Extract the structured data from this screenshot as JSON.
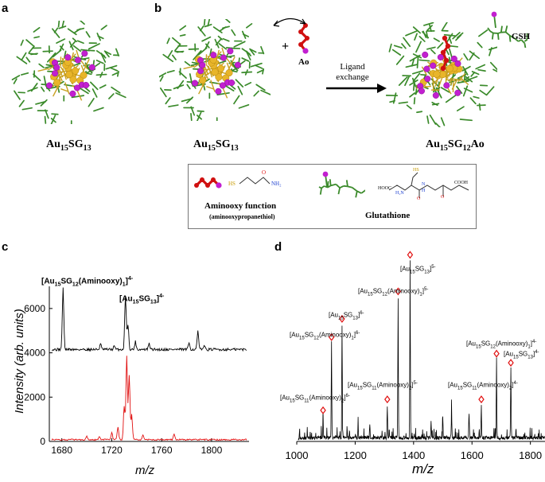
{
  "panels": {
    "a": "a",
    "b": "b",
    "c": "c",
    "d": "d"
  },
  "top": {
    "a_caption": {
      "base": "Au",
      "s1": "15",
      "mid": "SG",
      "s2": "13",
      "tail": ""
    },
    "b_left_caption": {
      "base": "Au",
      "s1": "15",
      "mid": "SG",
      "s2": "13",
      "tail": ""
    },
    "b_right_caption": {
      "base": "Au",
      "s1": "15",
      "mid": "SG",
      "s2": "12",
      "tail": "Ao"
    },
    "plus": "+",
    "ao_label": "Ao",
    "gsh_label": "GSH",
    "arrow_text_line1": "Ligand",
    "arrow_text_line2": "exchange"
  },
  "legend": {
    "hs": "HS",
    "o": "O",
    "nh2": "NH₂",
    "aminooxy_title": "Aminooxy function",
    "aminooxy_sub": "(aminooxypropanethiol)",
    "glutathione": "Glutathione",
    "hooc": "HOOC",
    "cooh": "COOH",
    "h2n": "H₂N",
    "nh": "N",
    "h": "H",
    "o1": "O",
    "o2": "O",
    "hs2": "HS"
  },
  "colors": {
    "ligand_green": "#3a8a2a",
    "gold": "#e8b52a",
    "sulfur_magenta": "#c21fd0",
    "aminooxy_red": "#d01010",
    "spectrum_black": "#000000",
    "spectrum_red": "#e01010"
  },
  "chart_data": [
    {
      "type": "line",
      "panel": "c",
      "xlabel": "m/z",
      "ylabel": "Intensity (arb. units)",
      "xlim": [
        1670,
        1830
      ],
      "ylim": [
        0,
        7000
      ],
      "xticks": [
        1680,
        1720,
        1760,
        1800
      ],
      "yticks": [
        0,
        2000,
        4000,
        6000
      ],
      "series": [
        {
          "color": "black",
          "baseline": 4150,
          "peaks": [
            [
              1681,
              6900
            ],
            [
              1731,
              6600
            ],
            [
              1733,
              5300
            ],
            [
              1711,
              4400
            ],
            [
              1739,
              4500
            ],
            [
              1750,
              4400
            ],
            [
              1782,
              4450
            ],
            [
              1789,
              4950
            ],
            [
              1794,
              4350
            ],
            [
              1722,
              4300
            ]
          ]
        },
        {
          "color": "red",
          "baseline": 80,
          "peaks": [
            [
              1732,
              3850
            ],
            [
              1734,
              3000
            ],
            [
              1730,
              1600
            ],
            [
              1736,
              1200
            ],
            [
              1720,
              400
            ],
            [
              1725,
              650
            ],
            [
              1700,
              250
            ],
            [
              1710,
              200
            ],
            [
              1745,
              300
            ],
            [
              1770,
              350
            ]
          ]
        }
      ],
      "annotations": [
        {
          "base": "[Au",
          "s1": "15",
          "mid": "SG",
          "s2": "12",
          "tail": "(Aminooxy)",
          "s3": "1",
          "end": "]",
          "charge": "4-"
        },
        {
          "base": "[Au",
          "s1": "15",
          "mid": "SG",
          "s2": "13",
          "tail": "",
          "s3": "",
          "end": "]",
          "charge": "4-"
        }
      ]
    },
    {
      "type": "line",
      "panel": "d",
      "xlabel": "m/z",
      "ylabel": "",
      "xlim": [
        1000,
        1850
      ],
      "ylim": [
        0,
        100
      ],
      "xticks": [
        1000,
        1200,
        1400,
        1600,
        1800
      ],
      "series": [
        {
          "color": "black",
          "peaks": [
            [
              1388,
              97
            ],
            [
              1347,
              77
            ],
            [
              1155,
              62
            ],
            [
              1119,
              52
            ],
            [
              1684,
              43
            ],
            [
              1733,
              38
            ],
            [
              1310,
              18
            ],
            [
              1632,
              18
            ],
            [
              1090,
              12
            ],
            [
              1590,
              14
            ],
            [
              1530,
              16
            ],
            [
              1460,
              10
            ],
            [
              1250,
              8
            ],
            [
              1210,
              7
            ],
            [
              1500,
              11
            ]
          ]
        }
      ],
      "annotations": [
        {
          "base": "[Au",
          "s1": "15",
          "mid": "SG",
          "s2": "13",
          "tail": "",
          "s3": "",
          "end": "]",
          "charge": "5-"
        },
        {
          "base": "[Au",
          "s1": "15",
          "mid": "SG",
          "s2": "12",
          "tail": "(Aminooxy)",
          "s3": "1",
          "end": "]",
          "charge": "5-"
        },
        {
          "base": "[Au",
          "s1": "15",
          "mid": "SG",
          "s2": "13",
          "tail": "",
          "s3": "",
          "end": "]",
          "charge": "6-"
        },
        {
          "base": "[Au",
          "s1": "15",
          "mid": "SG",
          "s2": "12",
          "tail": "(Aminooxy)",
          "s3": "1",
          "end": "]",
          "charge": "6-"
        },
        {
          "base": "[Au",
          "s1": "15",
          "mid": "SG",
          "s2": "12",
          "tail": "(Aminooxy)",
          "s3": "1",
          "end": "]",
          "charge": "4-"
        },
        {
          "base": "[Au",
          "s1": "15",
          "mid": "SG",
          "s2": "13",
          "tail": "",
          "s3": "",
          "end": "]",
          "charge": "4-"
        },
        {
          "base": "[Au",
          "s1": "15",
          "mid": "SG",
          "s2": "11",
          "tail": "(Aminooxy)",
          "s3": "2",
          "end": "]",
          "charge": "5-"
        },
        {
          "base": "[Au",
          "s1": "15",
          "mid": "SG",
          "s2": "11",
          "tail": "(Aminooxy)",
          "s3": "2",
          "end": "]",
          "charge": "4-"
        },
        {
          "base": "[Au",
          "s1": "15",
          "mid": "SG",
          "s2": "11",
          "tail": "(Aminooxy)",
          "s3": "2",
          "end": "]",
          "charge": "6-"
        }
      ]
    }
  ]
}
